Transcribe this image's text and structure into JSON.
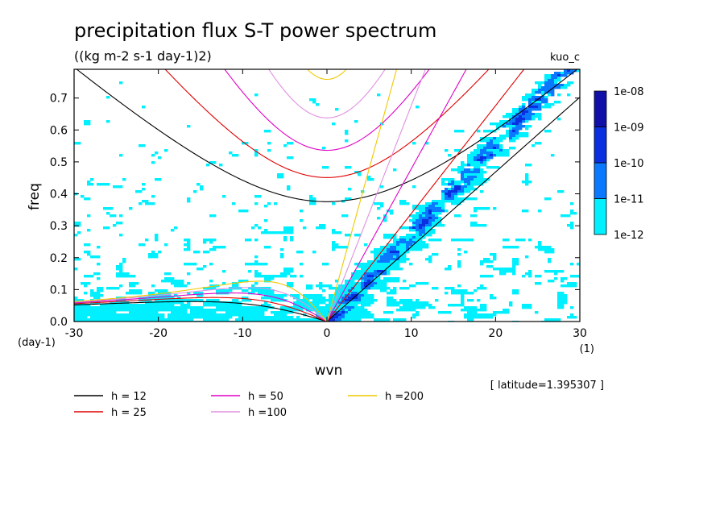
{
  "chart_data": {
    "type": "heatmap",
    "title": "precipitation flux S-T power spectrum",
    "subtitle": "((kg m-2 s-1 day-1)2)",
    "run_label": "kuo_c",
    "xlabel": "wvn",
    "ylabel": "freq",
    "x_unit": "(1)",
    "y_unit": "(day-1)",
    "xlim": [
      -30,
      30
    ],
    "ylim": [
      0,
      0.79
    ],
    "x_ticks": [
      "-30",
      "-20",
      "-10",
      "0",
      "10",
      "20",
      "30"
    ],
    "y_ticks": [
      "0.0",
      "0.1",
      "0.2",
      "0.3",
      "0.4",
      "0.5",
      "0.6",
      "0.7"
    ],
    "colorbar": {
      "levels": [
        "1e-12",
        "1e-11",
        "1e-10",
        "1e-09",
        "1e-08"
      ],
      "colors": [
        "#00f0ff",
        "#0a78ff",
        "#0a2fe0",
        "#1010a8",
        "#4a12a8"
      ]
    },
    "latitude_note": "[ latitude=1.395307 ]",
    "dispersion_curves": [
      {
        "label": "h = 12",
        "h": 12,
        "color": "#000000"
      },
      {
        "label": "h = 25",
        "h": 25,
        "color": "#e00000"
      },
      {
        "label": "h = 50",
        "h": 50,
        "color": "#e000c8"
      },
      {
        "label": "h =100",
        "h": 100,
        "color": "#e090e0"
      },
      {
        "label": "h =200",
        "h": 200,
        "color": "#f0c800"
      }
    ]
  }
}
